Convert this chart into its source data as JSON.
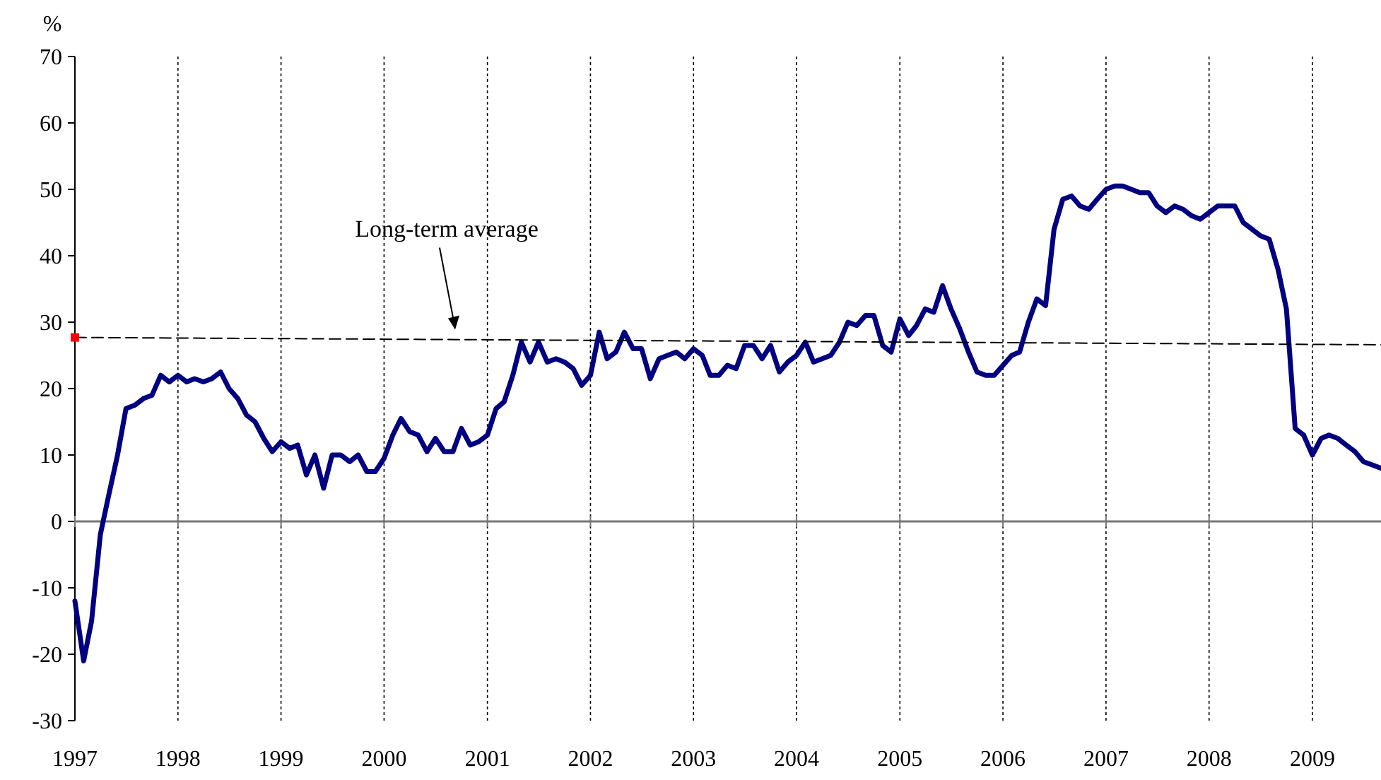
{
  "chart_data": {
    "type": "line",
    "ylabel": "%",
    "xlim": [
      "1997",
      "2009-09"
    ],
    "xticks": [
      "1997",
      "1998",
      "1999",
      "2000",
      "2001",
      "2002",
      "2003",
      "2004",
      "2005",
      "2006",
      "2007",
      "2008",
      "2009"
    ],
    "ylim": [
      -30,
      70
    ],
    "yticks": [
      -30,
      -20,
      -10,
      0,
      10,
      20,
      30,
      40,
      50,
      60,
      70
    ],
    "grid": "x",
    "annotations": [
      "Long-term average"
    ],
    "series": [
      {
        "color": "#000080",
        "marker": "none",
        "line_style": "solid",
        "x": [
          "1997-01",
          "1997-02",
          "1997-03",
          "1997-04",
          "1997-05",
          "1997-06",
          "1997-07",
          "1997-08",
          "1997-09",
          "1997-10",
          "1997-11",
          "1997-12",
          "1998-01",
          "1998-02",
          "1998-03",
          "1998-04",
          "1998-05",
          "1998-06",
          "1998-07",
          "1998-08",
          "1998-09",
          "1998-10",
          "1998-11",
          "1998-12",
          "1999-01",
          "1999-02",
          "1999-03",
          "1999-04",
          "1999-05",
          "1999-06",
          "1999-07",
          "1999-08",
          "1999-09",
          "1999-10",
          "1999-11",
          "1999-12",
          "2000-01",
          "2000-02",
          "2000-03",
          "2000-04",
          "2000-05",
          "2000-06",
          "2000-07",
          "2000-08",
          "2000-09",
          "2000-10",
          "2000-11",
          "2000-12",
          "2001-01",
          "2001-02",
          "2001-03",
          "2001-04",
          "2001-05",
          "2001-06",
          "2001-07",
          "2001-08",
          "2001-09",
          "2001-10",
          "2001-11",
          "2001-12",
          "2002-01",
          "2002-02",
          "2002-03",
          "2002-04",
          "2002-05",
          "2002-06",
          "2002-07",
          "2002-08",
          "2002-09",
          "2002-10",
          "2002-11",
          "2002-12",
          "2003-01",
          "2003-02",
          "2003-03",
          "2003-04",
          "2003-05",
          "2003-06",
          "2003-07",
          "2003-08",
          "2003-09",
          "2003-10",
          "2003-11",
          "2003-12",
          "2004-01",
          "2004-02",
          "2004-03",
          "2004-04",
          "2004-05",
          "2004-06",
          "2004-07",
          "2004-08",
          "2004-09",
          "2004-10",
          "2004-11",
          "2004-12",
          "2005-01",
          "2005-02",
          "2005-03",
          "2005-04",
          "2005-05",
          "2005-06",
          "2005-07",
          "2005-08",
          "2005-09",
          "2005-10",
          "2005-11",
          "2005-12",
          "2006-01",
          "2006-02",
          "2006-03",
          "2006-04",
          "2006-05",
          "2006-06",
          "2006-07",
          "2006-08",
          "2006-09",
          "2006-10",
          "2006-11",
          "2006-12",
          "2007-01",
          "2007-02",
          "2007-03",
          "2007-04",
          "2007-05",
          "2007-06",
          "2007-07",
          "2007-08",
          "2007-09",
          "2007-10",
          "2007-11",
          "2007-12",
          "2008-01",
          "2008-02",
          "2008-03",
          "2008-04",
          "2008-05",
          "2008-06",
          "2008-07",
          "2008-08",
          "2008-09",
          "2008-10",
          "2008-11",
          "2008-12",
          "2009-01",
          "2009-02",
          "2009-03",
          "2009-04",
          "2009-05",
          "2009-06",
          "2009-07",
          "2009-08",
          "2009-09"
        ],
        "values": [
          -12,
          -21,
          -15,
          -2,
          4,
          10,
          17,
          17.5,
          18.5,
          19,
          22,
          21,
          22,
          21,
          21.5,
          21,
          21.5,
          22.5,
          20,
          18.5,
          16,
          15,
          12.5,
          10.5,
          12,
          11,
          11.5,
          7,
          10,
          5,
          10,
          10,
          9,
          10,
          7.5,
          7.5,
          9.5,
          13,
          15.5,
          13.5,
          13,
          10.5,
          12.5,
          10.5,
          10.5,
          14,
          11.5,
          12,
          13,
          17,
          18,
          22,
          27,
          24,
          27,
          24,
          24.5,
          24,
          23,
          20.5,
          22,
          28.5,
          24.5,
          25.5,
          28.5,
          26,
          26,
          21.5,
          24.5,
          25,
          25.5,
          24.5,
          26,
          25,
          22,
          22,
          23.5,
          23,
          26.5,
          26.5,
          24.5,
          26.5,
          22.5,
          24,
          25,
          27,
          24,
          24.5,
          25,
          27,
          30,
          29.5,
          31,
          31,
          26.5,
          25.5,
          30.5,
          28,
          29.5,
          32,
          31.5,
          35.5,
          32,
          29,
          25.5,
          22.5,
          22,
          22,
          23.5,
          25,
          25.5,
          30,
          33.5,
          32.5,
          44,
          48.5,
          49,
          47.5,
          47,
          48.5,
          50,
          50.5,
          50.5,
          50,
          49.5,
          49.5,
          47.5,
          46.5,
          47.5,
          47,
          46,
          45.5,
          46.5,
          47.5,
          47.5,
          47.5,
          45,
          44,
          43,
          42.5,
          38,
          32,
          14,
          13,
          10,
          12.5,
          13,
          12.5,
          11.5,
          10.5,
          9,
          8.5,
          8
        ]
      },
      {
        "type": "line",
        "color": "#000000",
        "marker": "none",
        "line_style": "dashed",
        "x": [
          "1997",
          "2009-09"
        ],
        "values": [
          27.7,
          26.6
        ]
      },
      {
        "type": "scatter",
        "color": "#ff0000",
        "marker": "square",
        "x": [
          "1997"
        ],
        "values": [
          27.7
        ]
      }
    ]
  }
}
